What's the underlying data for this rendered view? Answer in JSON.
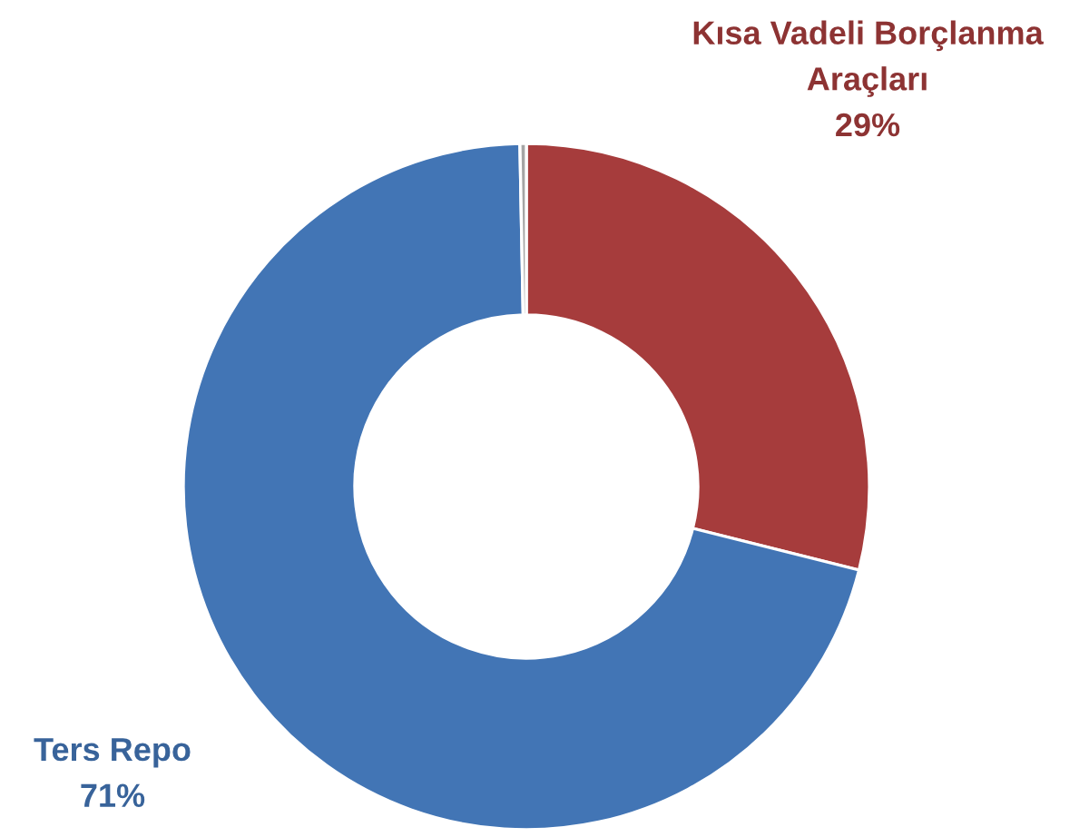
{
  "chart_data": {
    "type": "donut",
    "categories": [
      "Kısa Vadeli Borçlanma Araçları",
      "Ters Repo",
      null
    ],
    "values": [
      29,
      71,
      0.3
    ],
    "value_labels": [
      "29%",
      "71%",
      null
    ],
    "colors": [
      "#a63c3c",
      "#4275b5",
      "#a5a5a5"
    ]
  }
}
